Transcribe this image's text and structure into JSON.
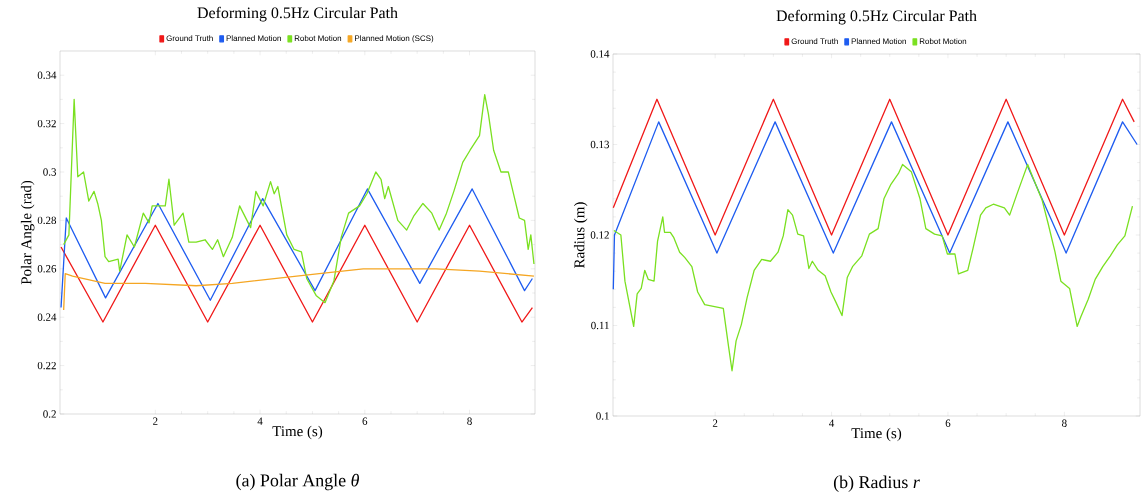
{
  "chart_data": [
    {
      "type": "line",
      "title": "Deforming 0.5Hz Circular Path",
      "xlabel": "Time  (s)",
      "ylabel": "Polar Angle (rad)",
      "legend": "top",
      "xlim": [
        0.18,
        9.25
      ],
      "ylim": [
        0.2,
        0.35
      ],
      "xticks": [
        2,
        4,
        6,
        8
      ],
      "yticks": [
        0.2,
        0.22,
        0.24,
        0.26,
        0.28,
        0.3,
        0.32,
        0.34
      ],
      "annotations": [
        "(a) Polar Angle *θ*"
      ],
      "series": [
        {
          "name": "Ground Truth",
          "color": "#f01818",
          "x": [
            0.2,
            1,
            2,
            3,
            4,
            5,
            6,
            7,
            8,
            9,
            9.2
          ],
          "values": [
            0.269,
            0.238,
            0.278,
            0.238,
            0.278,
            0.238,
            0.278,
            0.238,
            0.278,
            0.238,
            0.244
          ]
        },
        {
          "name": "Planned Motion",
          "color": "#1e5cf0",
          "x": [
            0.2,
            0.3,
            1.05,
            2.05,
            3.05,
            4.05,
            5.05,
            6.05,
            7.05,
            8.05,
            9.05,
            9.2
          ],
          "values": [
            0.244,
            0.281,
            0.248,
            0.287,
            0.247,
            0.289,
            0.251,
            0.293,
            0.254,
            0.293,
            0.251,
            0.256
          ]
        },
        {
          "name": "Robot Motion",
          "color": "#7ae020",
          "x": [
            0.25,
            0.35,
            0.45,
            0.52,
            0.63,
            0.73,
            0.83,
            0.9,
            0.97,
            1.04,
            1.11,
            1.29,
            1.32,
            1.46,
            1.6,
            1.77,
            1.88,
            1.94,
            2.19,
            2.26,
            2.36,
            2.53,
            2.64,
            2.78,
            2.95,
            3.09,
            3.19,
            3.3,
            3.47,
            3.61,
            3.82,
            3.92,
            4.06,
            4.2,
            4.27,
            4.34,
            4.51,
            4.65,
            4.79,
            4.89,
            5.07,
            5.24,
            5.41,
            5.55,
            5.69,
            5.9,
            6.04,
            6.21,
            6.31,
            6.38,
            6.45,
            6.63,
            6.8,
            6.94,
            7.11,
            7.28,
            7.42,
            7.56,
            7.7,
            7.87,
            8.01,
            8.19,
            8.29,
            8.36,
            8.46,
            8.6,
            8.74,
            8.84,
            8.95,
            9.05,
            9.12,
            9.17,
            9.23
          ],
          "values": [
            0.27,
            0.274,
            0.33,
            0.298,
            0.3,
            0.288,
            0.292,
            0.287,
            0.28,
            0.265,
            0.263,
            0.264,
            0.259,
            0.274,
            0.269,
            0.283,
            0.279,
            0.286,
            0.286,
            0.297,
            0.278,
            0.283,
            0.271,
            0.271,
            0.272,
            0.268,
            0.272,
            0.265,
            0.273,
            0.286,
            0.277,
            0.292,
            0.286,
            0.296,
            0.291,
            0.294,
            0.274,
            0.268,
            0.267,
            0.256,
            0.249,
            0.246,
            0.255,
            0.273,
            0.283,
            0.286,
            0.291,
            0.3,
            0.297,
            0.289,
            0.294,
            0.28,
            0.276,
            0.282,
            0.287,
            0.283,
            0.276,
            0.283,
            0.292,
            0.304,
            0.309,
            0.315,
            0.332,
            0.324,
            0.309,
            0.3,
            0.3,
            0.291,
            0.281,
            0.28,
            0.268,
            0.274,
            0.262
          ]
        },
        {
          "name": "Planned Motion (SCS)",
          "color": "#f5a623",
          "x": [
            0.25,
            0.28,
            0.42,
            1.04,
            1.81,
            2.78,
            3.47,
            4.3,
            5.13,
            5.97,
            6.52,
            7.36,
            8.19,
            9.23
          ],
          "values": [
            0.243,
            0.258,
            0.257,
            0.254,
            0.254,
            0.253,
            0.254,
            0.256,
            0.258,
            0.26,
            0.26,
            0.26,
            0.259,
            0.257
          ]
        }
      ]
    },
    {
      "type": "line",
      "title": "Deforming 0.5Hz Circular Path",
      "xlabel": "Time  (s)",
      "ylabel": "Radius (m)",
      "legend": "top",
      "xlim": [
        0.245,
        9.3
      ],
      "ylim": [
        0.1,
        0.14
      ],
      "xticks": [
        2,
        4,
        6,
        8
      ],
      "yticks": [
        0.1,
        0.11,
        0.12,
        0.13,
        0.14
      ],
      "annotations": [
        "(b) Radius *r*"
      ],
      "series": [
        {
          "name": "Ground Truth",
          "color": "#f01818",
          "x": [
            0.25,
            1,
            2,
            3,
            4,
            5,
            6,
            7,
            8,
            9,
            9.2
          ],
          "values": [
            0.123,
            0.135,
            0.12,
            0.135,
            0.12,
            0.135,
            0.12,
            0.135,
            0.12,
            0.135,
            0.1325
          ]
        },
        {
          "name": "Planned Motion",
          "color": "#1e5cf0",
          "x": [
            0.25,
            0.27,
            1.03,
            2.03,
            3.03,
            4.03,
            5.03,
            6.03,
            7.03,
            8.03,
            9.0,
            9.25
          ],
          "values": [
            0.114,
            0.12,
            0.1325,
            0.118,
            0.1325,
            0.118,
            0.1325,
            0.118,
            0.1325,
            0.118,
            0.1325,
            0.13
          ]
        },
        {
          "name": "Robot Motion",
          "color": "#7ae020",
          "x": [
            0.26,
            0.38,
            0.45,
            0.6,
            0.66,
            0.73,
            0.79,
            0.85,
            0.95,
            1.01,
            1.1,
            1.13,
            1.23,
            1.29,
            1.39,
            1.48,
            1.6,
            1.7,
            1.82,
            2.14,
            2.23,
            2.29,
            2.36,
            2.45,
            2.55,
            2.67,
            2.8,
            2.95,
            3.08,
            3.17,
            3.25,
            3.33,
            3.42,
            3.52,
            3.61,
            3.67,
            3.77,
            3.89,
            3.99,
            4.08,
            4.18,
            4.27,
            4.36,
            4.52,
            4.65,
            4.8,
            4.9,
            5.02,
            5.15,
            5.22,
            5.37,
            5.52,
            5.62,
            5.77,
            5.9,
            5.99,
            6.12,
            6.18,
            6.34,
            6.43,
            6.56,
            6.65,
            6.78,
            6.97,
            7.06,
            7.19,
            7.28,
            7.37,
            7.47,
            7.62,
            7.72,
            7.84,
            7.94,
            8.09,
            8.22,
            8.28,
            8.41,
            8.53,
            8.66,
            8.79,
            8.91,
            9.04,
            9.17
          ],
          "values": [
            0.1205,
            0.12,
            0.1149,
            0.1099,
            0.1135,
            0.1141,
            0.1161,
            0.1151,
            0.1149,
            0.1193,
            0.122,
            0.1203,
            0.1203,
            0.1197,
            0.1181,
            0.1175,
            0.1165,
            0.1137,
            0.1123,
            0.1119,
            0.1077,
            0.105,
            0.1083,
            0.1101,
            0.1131,
            0.1161,
            0.1173,
            0.1171,
            0.1181,
            0.1199,
            0.1228,
            0.1222,
            0.1201,
            0.1199,
            0.1163,
            0.1171,
            0.1161,
            0.1155,
            0.1137,
            0.1125,
            0.1111,
            0.1153,
            0.1165,
            0.1177,
            0.1201,
            0.1207,
            0.124,
            0.1256,
            0.1268,
            0.1278,
            0.127,
            0.124,
            0.1207,
            0.1201,
            0.1199,
            0.1179,
            0.1179,
            0.1157,
            0.1161,
            0.1185,
            0.1222,
            0.123,
            0.1234,
            0.123,
            0.1222,
            0.1246,
            0.1262,
            0.1278,
            0.1262,
            0.1238,
            0.1213,
            0.1181,
            0.1149,
            0.1141,
            0.1099,
            0.1109,
            0.1129,
            0.1151,
            0.1165,
            0.1177,
            0.1189,
            0.1199,
            0.1232
          ]
        }
      ]
    }
  ]
}
